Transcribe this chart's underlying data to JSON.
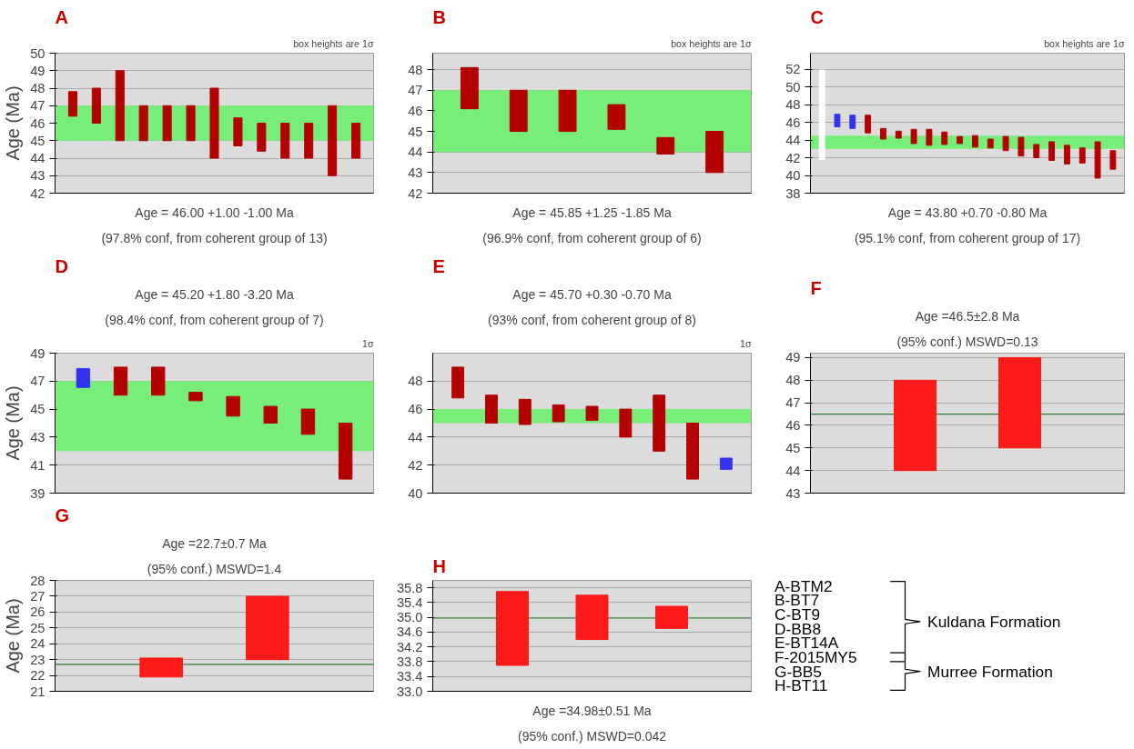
{
  "chart_data": [
    {
      "type": "bar",
      "title": "A",
      "ylabel": "Age (Ma)",
      "categories": [
        null,
        null,
        null,
        null,
        null,
        null,
        null,
        null,
        null,
        null,
        null,
        null,
        null
      ],
      "base": [
        46.4,
        46,
        45,
        45,
        45,
        45,
        44,
        44.7,
        44.4,
        44,
        44,
        43,
        44
      ],
      "values": [
        1.4,
        2,
        4,
        2,
        2,
        2,
        4,
        1.6,
        1.6,
        2,
        2,
        4,
        2
      ],
      "colors": [
        "#b30000",
        "#b30000",
        "#b30000",
        "#b30000",
        "#b30000",
        "#b30000",
        "#b30000",
        "#b30000",
        "#b30000",
        "#b30000",
        "#b30000",
        "#b30000",
        "#b30000"
      ],
      "ylim": [
        42,
        50
      ],
      "yticks": [
        42,
        43,
        44,
        45,
        46,
        47,
        48,
        49,
        50
      ],
      "grid": "y",
      "tick_labels": "y",
      "bands": [
        {
          "axis": "y",
          "from": 45,
          "to": 47,
          "color": "#77ee77"
        }
      ],
      "annotations": [
        "box heights are 1σ",
        "Age = 46.00 +1.00 -1.00 Ma",
        "(97.8% conf, from coherent group of 13)"
      ]
    },
    {
      "type": "bar",
      "title": "B",
      "categories": [
        null,
        null,
        null,
        null,
        null,
        null
      ],
      "base": [
        46.1,
        45,
        45,
        45.1,
        43.9,
        43
      ],
      "values": [
        2,
        2,
        2,
        1.2,
        0.8,
        2
      ],
      "colors": [
        "#b30000",
        "#b30000",
        "#b30000",
        "#b30000",
        "#b30000",
        "#b30000"
      ],
      "ylim": [
        42,
        48.8
      ],
      "yticks": [
        42,
        43,
        44,
        45,
        46,
        47,
        48
      ],
      "grid": "y",
      "tick_labels": "y",
      "bands": [
        {
          "axis": "y",
          "from": 44,
          "to": 47,
          "color": "#77ee77"
        }
      ],
      "annotations": [
        "box heights are 1σ",
        "Age = 45.85 +1.25 -1.85 Ma",
        "(96.9% conf, from coherent group of 6)"
      ]
    },
    {
      "type": "bar",
      "title": "C",
      "categories": [
        null,
        null,
        null,
        null,
        null,
        null,
        null,
        null,
        null,
        null,
        null,
        null,
        null,
        null,
        null,
        null,
        null,
        null,
        null,
        null
      ],
      "base": [
        41.8,
        45.5,
        45.3,
        44.8,
        44.1,
        44.2,
        43.6,
        43.4,
        43.5,
        43.6,
        43.2,
        43.1,
        42.8,
        42.2,
        42.0,
        41.7,
        41.3,
        41.4,
        39.7,
        40.7
      ],
      "values": [
        10.1,
        1.4,
        1.5,
        2.0,
        1.2,
        0.8,
        1.6,
        1.8,
        1.4,
        0.8,
        1.3,
        1.0,
        1.6,
        2.1,
        1.5,
        2.1,
        2.1,
        1.7,
        4.1,
        2.1
      ],
      "colors": [
        "#ffffff",
        "#3333ee",
        "#3333ee",
        "#b30000",
        "#b30000",
        "#b30000",
        "#b30000",
        "#b30000",
        "#b30000",
        "#b30000",
        "#b30000",
        "#b30000",
        "#b30000",
        "#b30000",
        "#b30000",
        "#b30000",
        "#b30000",
        "#b30000",
        "#b30000",
        "#b30000"
      ],
      "ylim": [
        38,
        53.8
      ],
      "yticks": [
        38,
        40,
        42,
        44,
        46,
        48,
        50,
        52
      ],
      "grid": "y",
      "tick_labels": "y",
      "bands": [
        {
          "axis": "y",
          "from": 43.0,
          "to": 44.5,
          "color": "#77ee77"
        }
      ],
      "annotations": [
        "box heights are 1σ",
        "Age = 43.80 +0.70 -0.80 Ma",
        "(95.1% conf, from coherent group of 17)"
      ]
    },
    {
      "type": "bar",
      "title": "D",
      "ylabel": "Age (Ma)",
      "categories": [
        null,
        null,
        null,
        null,
        null,
        null,
        null,
        null
      ],
      "base": [
        46.55,
        46.0,
        46.0,
        45.6,
        44.5,
        44.0,
        43.2,
        40.0
      ],
      "values": [
        1.35,
        2.0,
        2.0,
        0.6,
        1.4,
        1.2,
        1.8,
        4.0
      ],
      "colors": [
        "#3333ee",
        "#b30000",
        "#b30000",
        "#b30000",
        "#b30000",
        "#b30000",
        "#b30000",
        "#b30000"
      ],
      "ylim": [
        39,
        49
      ],
      "yticks": [
        39,
        41,
        43,
        45,
        47,
        49
      ],
      "grid": "y",
      "tick_labels": "y",
      "bands": [
        {
          "axis": "y",
          "from": 42,
          "to": 47,
          "color": "#77ee77"
        }
      ],
      "annotations": [
        "1σ",
        "Age = 45.20 +1.80 -3.20 Ma",
        "(98.4% conf, from coherent group of 7)"
      ]
    },
    {
      "type": "bar",
      "title": "E",
      "categories": [
        null,
        null,
        null,
        null,
        null,
        null,
        null,
        null,
        null
      ],
      "base": [
        46.8,
        45.0,
        44.9,
        45.1,
        45.2,
        44.0,
        43.0,
        41.0,
        41.7
      ],
      "values": [
        2.2,
        2.0,
        1.8,
        1.2,
        1.0,
        2.0,
        4.0,
        4.0,
        0.8
      ],
      "colors": [
        "#b30000",
        "#b30000",
        "#b30000",
        "#b30000",
        "#b30000",
        "#b30000",
        "#b30000",
        "#b30000",
        "#3333ee"
      ],
      "ylim": [
        40,
        50
      ],
      "yticks": [
        40,
        42,
        44,
        46,
        48
      ],
      "grid": "y",
      "tick_labels": "y",
      "bands": [
        {
          "axis": "y",
          "from": 45,
          "to": 46,
          "color": "#77ee77"
        }
      ],
      "annotations": [
        "1σ",
        "Age = 45.70 +0.30 -0.70 Ma",
        "(93% conf, from coherent group of 8)"
      ]
    },
    {
      "type": "bar",
      "title": "F",
      "categories": [
        null,
        null
      ],
      "base": [
        44,
        45
      ],
      "values": [
        4,
        4
      ],
      "colors": [
        "#ff1a1a",
        "#ff1a1a"
      ],
      "ylim": [
        43,
        49.2
      ],
      "yticks": [
        43,
        44,
        45,
        46,
        47,
        48,
        49
      ],
      "grid": "y",
      "tick_labels": "y",
      "ref_lines": [
        {
          "axis": "y",
          "value": 46.5,
          "color": "#2e7d32"
        }
      ],
      "annotations": [
        "Age =46.5±2.8 Ma",
        "(95% conf.) MSWD=0.13"
      ]
    },
    {
      "type": "bar",
      "title": "G",
      "ylabel": "Age (Ma)",
      "categories": [
        null,
        null
      ],
      "base": [
        21.9,
        23
      ],
      "values": [
        1.2,
        4
      ],
      "colors": [
        "#ff1a1a",
        "#ff1a1a"
      ],
      "ylim": [
        21,
        28
      ],
      "yticks": [
        21,
        22,
        23,
        24,
        25,
        26,
        27,
        28
      ],
      "grid": "y",
      "tick_labels": "y",
      "ref_lines": [
        {
          "axis": "y",
          "value": 22.7,
          "color": "#2e7d32"
        }
      ],
      "annotations": [
        "Age =22.7±0.7 Ma",
        "(95% conf.) MSWD=1.4"
      ]
    },
    {
      "type": "bar",
      "title": "H",
      "categories": [
        null,
        null,
        null
      ],
      "base": [
        33.7,
        34.4,
        34.7
      ],
      "values": [
        2.0,
        1.2,
        0.6
      ],
      "colors": [
        "#ff1a1a",
        "#ff1a1a",
        "#ff1a1a"
      ],
      "ylim": [
        33.0,
        36.0
      ],
      "yticks": [
        {
          "value": 33.0,
          "label": "33.0"
        },
        {
          "value": 33.4,
          "label": "33.4"
        },
        {
          "value": 33.8,
          "label": "33.8"
        },
        {
          "value": 34.2,
          "label": "34.2"
        },
        {
          "value": 34.6,
          "label": "34.6"
        },
        {
          "value": 35.0,
          "label": "35.0"
        },
        {
          "value": 35.4,
          "label": "35.4"
        },
        {
          "value": 35.8,
          "label": "35.8"
        }
      ],
      "grid": "y",
      "tick_labels": "y",
      "ref_lines": [
        {
          "axis": "y",
          "value": 34.98,
          "color": "#2e7d32"
        }
      ],
      "annotations": [
        "Age =34.98±0.51 Ma",
        "(95% conf.) MSWD=0.042"
      ]
    },
    {
      "type": "other",
      "categories": [
        "A-BTM2",
        "B-BT7",
        "C-BT9",
        "D-BB8",
        "E-BT14A",
        "F-2015MY5",
        "G-BB5",
        "H-BT11"
      ],
      "annotations": [
        "Kuldana Formation",
        "Murree Formation"
      ]
    }
  ]
}
